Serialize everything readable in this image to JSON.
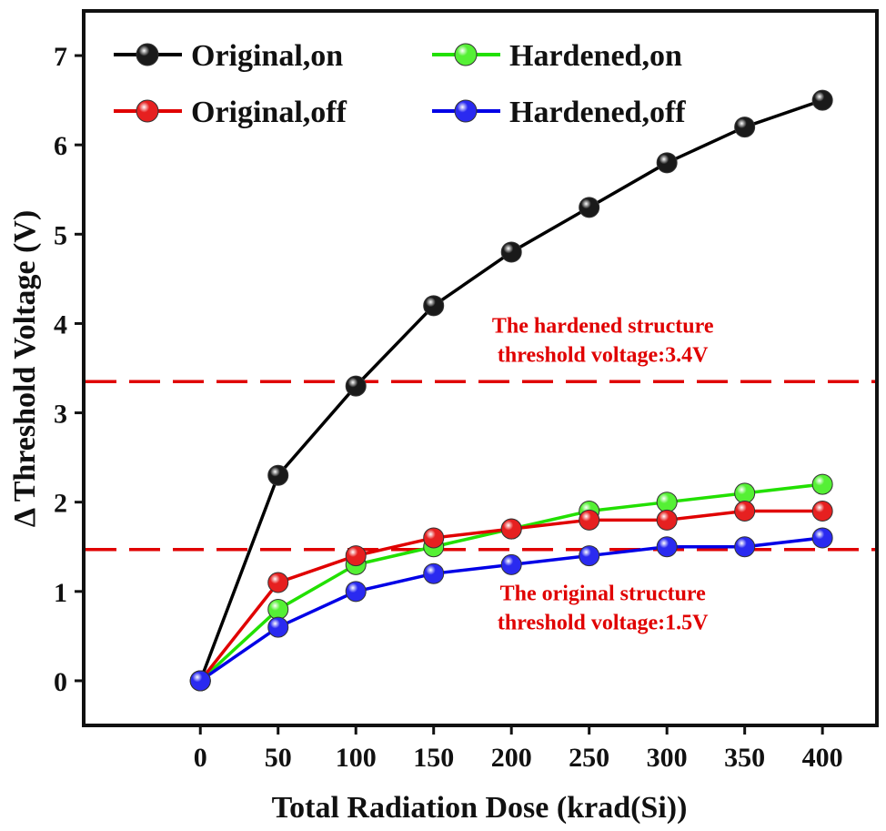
{
  "chart_data": {
    "type": "line",
    "xlabel": "Total Radiation Dose (krad(Si))",
    "ylabel": "Δ Threshold Voltage (V)",
    "x": [
      0,
      50,
      100,
      150,
      200,
      250,
      300,
      350,
      400
    ],
    "xlim": [
      -75,
      435
    ],
    "ylim": [
      -0.5,
      7.5
    ],
    "xticks": [
      0,
      50,
      100,
      150,
      200,
      250,
      300,
      350,
      400
    ],
    "xtick_labels": [
      "0",
      "50",
      "100",
      "150",
      "200",
      "250",
      "300",
      "350",
      "400"
    ],
    "yticks": [
      0,
      1,
      2,
      3,
      4,
      5,
      6,
      7
    ],
    "ytick_labels": [
      "0",
      "1",
      "2",
      "3",
      "4",
      "5",
      "6",
      "7"
    ],
    "grid": false,
    "legend_position": "top-left",
    "series": [
      {
        "name": "Original,on",
        "color": "#000000",
        "marker_color": "#1a1a1a",
        "values": [
          0,
          2.3,
          3.3,
          4.2,
          4.8,
          5.3,
          5.8,
          6.2,
          6.5
        ]
      },
      {
        "name": "Hardened,on",
        "color": "#22e000",
        "marker_color": "#55f035",
        "values": [
          0,
          0.8,
          1.3,
          1.5,
          1.7,
          1.9,
          2.0,
          2.1,
          2.2
        ]
      },
      {
        "name": "Original,off",
        "color": "#e00000",
        "marker_color": "#e62020",
        "values": [
          0,
          1.1,
          1.4,
          1.6,
          1.7,
          1.8,
          1.8,
          1.9,
          1.9
        ]
      },
      {
        "name": "Hardened,off",
        "color": "#0000e6",
        "marker_color": "#2a2af0",
        "values": [
          0,
          0.6,
          1.0,
          1.2,
          1.3,
          1.4,
          1.5,
          1.5,
          1.6
        ]
      }
    ],
    "reference_lines": [
      {
        "y": 3.35,
        "color": "#e00000",
        "style": "dashed"
      },
      {
        "y": 1.47,
        "color": "#e00000",
        "style": "dashed"
      }
    ],
    "annotations": [
      {
        "lines": [
          "The hardened structure",
          "threshold voltage:3.4V"
        ],
        "color": "#e00000",
        "x": 212,
        "y": 3.9
      },
      {
        "lines": [
          "The original structure",
          "threshold voltage:1.5V"
        ],
        "color": "#e00000",
        "x": 212,
        "y": 0.9
      }
    ]
  }
}
